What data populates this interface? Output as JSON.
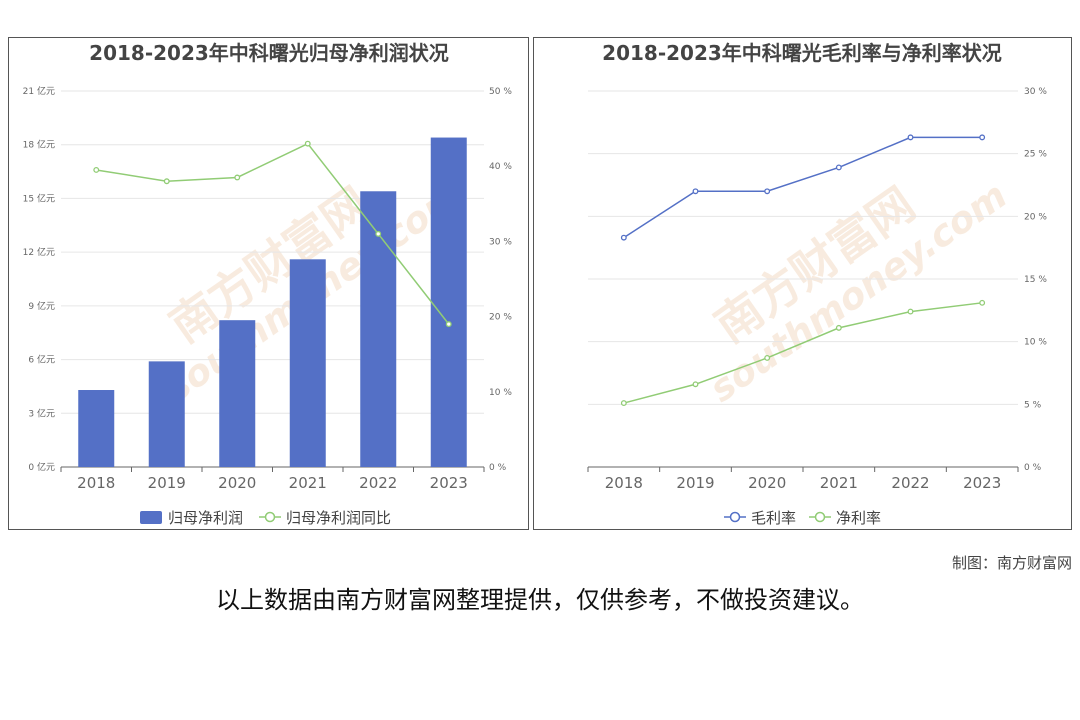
{
  "chart_data": [
    {
      "type": "bar",
      "title": "2018-2023年中科曙光归母净利润状况",
      "categories": [
        "2018",
        "2019",
        "2020",
        "2021",
        "2022",
        "2023"
      ],
      "series": [
        {
          "name": "归母净利润",
          "type": "bar",
          "axis": "left",
          "values": [
            4.3,
            5.9,
            8.2,
            11.6,
            15.4,
            18.4
          ],
          "color": "#5470c6"
        },
        {
          "name": "归母净利润同比",
          "type": "line",
          "axis": "right",
          "values": [
            39.5,
            38.0,
            38.5,
            43.0,
            31.0,
            19.0
          ],
          "color": "#91cc75"
        }
      ],
      "y_left": {
        "min": 0,
        "max": 21,
        "ticks": [
          0,
          3,
          6,
          9,
          12,
          15,
          18,
          21
        ],
        "unit": "亿元"
      },
      "y_right": {
        "min": 0,
        "max": 50,
        "ticks": [
          0,
          10,
          20,
          30,
          40,
          50
        ],
        "unit": "%"
      },
      "legend": "bottom"
    },
    {
      "type": "line",
      "title": "2018-2023年中科曙光毛利率与净利率状况",
      "categories": [
        "2018",
        "2019",
        "2020",
        "2021",
        "2022",
        "2023"
      ],
      "series": [
        {
          "name": "毛利率",
          "values": [
            18.3,
            22.0,
            22.0,
            23.9,
            26.3,
            26.3
          ],
          "color": "#5470c6"
        },
        {
          "name": "净利率",
          "values": [
            5.1,
            6.6,
            8.7,
            11.1,
            12.4,
            13.1
          ],
          "color": "#91cc75"
        }
      ],
      "y_right": {
        "min": 0,
        "max": 30,
        "ticks": [
          0,
          5,
          10,
          15,
          20,
          25,
          30
        ],
        "unit": "%"
      },
      "legend": "bottom"
    }
  ],
  "footer": {
    "credit": "制图：南方财富网",
    "disclaimer": "以上数据由南方财富网整理提供，仅供参考，不做投资建议。"
  },
  "watermark": {
    "brand": "南方财富网",
    "domain": "southmoney.com"
  }
}
